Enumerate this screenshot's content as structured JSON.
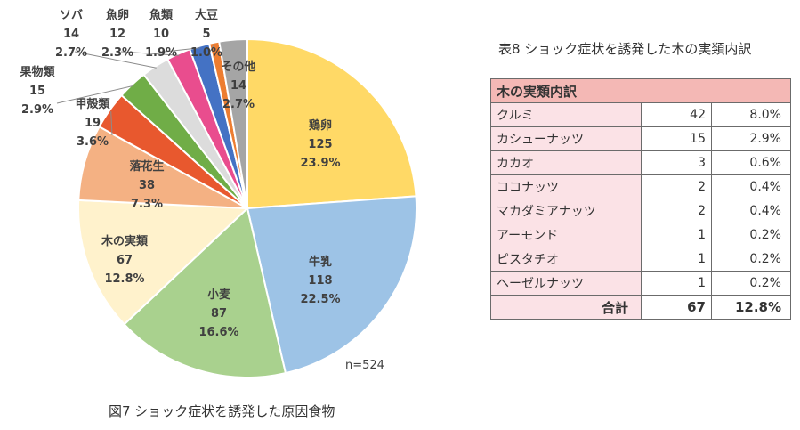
{
  "chart_data": [
    {
      "type": "pie",
      "caption": "図7 ショック症状を誘発した原因食物",
      "n_label": "n=524",
      "slices": [
        {
          "label": "鶏卵",
          "value": 125,
          "percent": "23.9%",
          "color": "#ffd966"
        },
        {
          "label": "牛乳",
          "value": 118,
          "percent": "22.5%",
          "color": "#9dc3e6"
        },
        {
          "label": "小麦",
          "value": 87,
          "percent": "16.6%",
          "color": "#a9d18e"
        },
        {
          "label": "木の実類",
          "value": 67,
          "percent": "12.8%",
          "color": "#fff2cc"
        },
        {
          "label": "落花生",
          "value": 38,
          "percent": "7.3%",
          "color": "#f4b183"
        },
        {
          "label": "甲殻類",
          "value": 19,
          "percent": "3.6%",
          "color": "#e8582e"
        },
        {
          "label": "果物類",
          "value": 15,
          "percent": "2.9%",
          "color": "#70ad47"
        },
        {
          "label": "ソバ",
          "value": 14,
          "percent": "2.7%",
          "color": "#dcdcdc"
        },
        {
          "label": "魚卵",
          "value": 12,
          "percent": "2.3%",
          "color": "#e94d8e"
        },
        {
          "label": "魚類",
          "value": 10,
          "percent": "1.9%",
          "color": "#4472c4"
        },
        {
          "label": "大豆",
          "value": 5,
          "percent": "1.0%",
          "color": "#ed7d31"
        },
        {
          "label": "その他",
          "value": 14,
          "percent": "2.7%",
          "color": "#a5a5a5"
        }
      ]
    },
    {
      "type": "table",
      "caption": "表8 ショック症状を誘発した木の実類内訳",
      "header": "木の実類内訳",
      "rows": [
        {
          "name": "クルミ",
          "count": "42",
          "percent": "8.0%"
        },
        {
          "name": "カシューナッツ",
          "count": "15",
          "percent": "2.9%"
        },
        {
          "name": "カカオ",
          "count": "3",
          "percent": "0.6%"
        },
        {
          "name": "ココナッツ",
          "count": "2",
          "percent": "0.4%"
        },
        {
          "name": "マカダミアナッツ",
          "count": "2",
          "percent": "0.4%"
        },
        {
          "name": "アーモンド",
          "count": "1",
          "percent": "0.2%"
        },
        {
          "name": "ピスタチオ",
          "count": "1",
          "percent": "0.2%"
        },
        {
          "name": "ヘーゼルナッツ",
          "count": "1",
          "percent": "0.2%"
        }
      ],
      "total": {
        "name": "合計",
        "count": "67",
        "percent": "12.8%"
      }
    }
  ]
}
